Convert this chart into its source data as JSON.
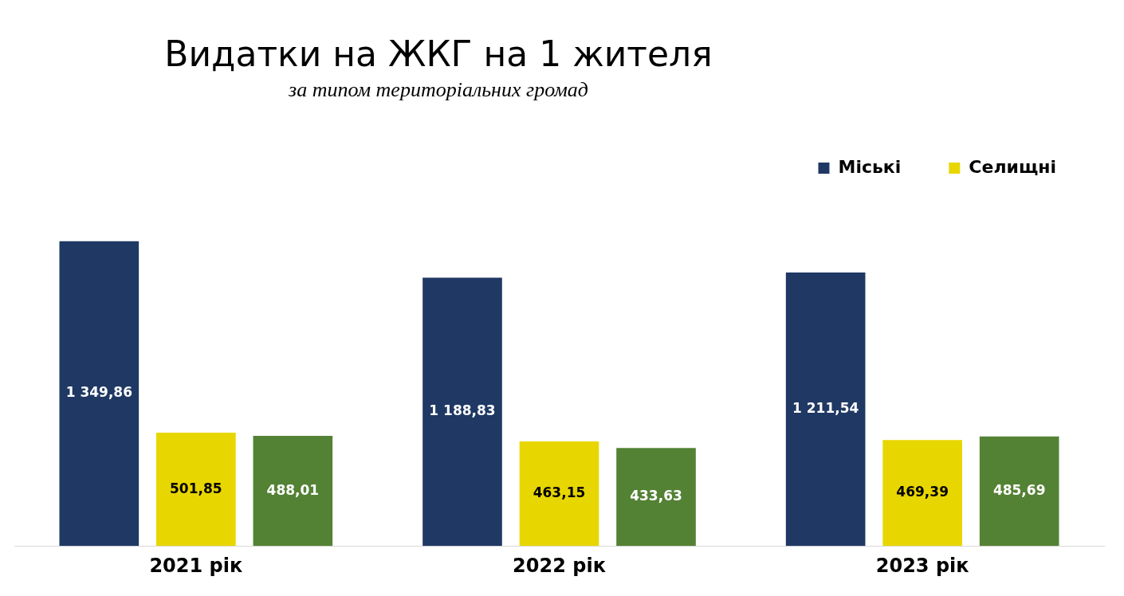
{
  "chart_data": {
    "type": "bar",
    "title": "Видатки на ЖКГ на 1 жителя",
    "subtitle": "за типом територіальних громад",
    "categories": [
      "2021 рік",
      "2022 рік",
      "2023 рік"
    ],
    "series": [
      {
        "name": "Міські",
        "color": "#1f3864",
        "values": [
          1349.86,
          1188.83,
          1211.54
        ],
        "value_labels": [
          "1 349,86",
          "1 188,83",
          "1 211,54"
        ]
      },
      {
        "name": "Селищні",
        "color": "#e8d600",
        "values": [
          501.85,
          463.15,
          469.39
        ],
        "value_labels": [
          "501,85",
          "463,15",
          "469,39"
        ]
      },
      {
        "color": "#548235",
        "values": [
          488.01,
          433.63,
          485.69
        ],
        "value_labels": [
          "488,01",
          "433,63",
          "485,69"
        ]
      }
    ],
    "relative": false,
    "grid": false,
    "legend": "top right"
  }
}
